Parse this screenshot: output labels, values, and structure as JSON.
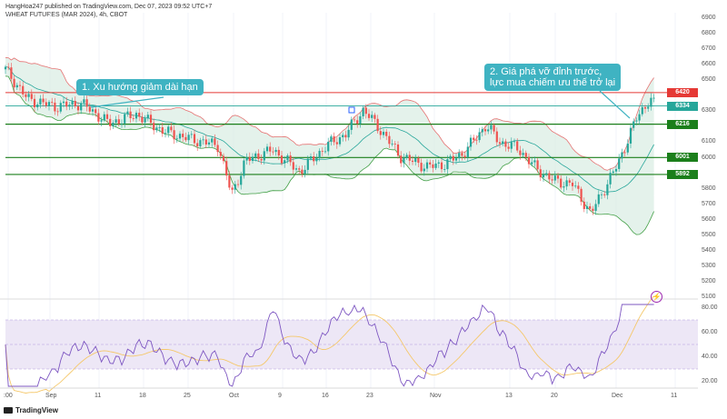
{
  "header": {
    "publisher": "HangHoa247 published on TradingView.com, Dec 07, 2023 09:52 UTC+7",
    "symbol": "WHEAT FUTURES (MAR 2024), 4h, CBOT"
  },
  "annotations": {
    "callout1": "1. Xu hướng giảm dài hạn",
    "callout2_line1": "2. Giá phá vỡ đỉnh trước,",
    "callout2_line2": "lực mua chiếm ưu thế trở lại"
  },
  "price_levels": [
    {
      "label": "6420",
      "value": 6420,
      "color": "#e53935",
      "kind": "tag"
    },
    {
      "label": "6334",
      "value": 6334,
      "color": "#26a69a",
      "kind": "tag"
    },
    {
      "label": "6216",
      "value": 6216,
      "color": "#1b7f1b",
      "kind": "line"
    },
    {
      "label": "6001",
      "value": 6001,
      "color": "#1b7f1b",
      "kind": "line"
    },
    {
      "label": "5892",
      "value": 5892,
      "color": "#1b7f1b",
      "kind": "line"
    }
  ],
  "price_axis": [
    "6900",
    "6800",
    "6700",
    "6600",
    "6500",
    "6300",
    "6100",
    "6000",
    "5800",
    "5700",
    "5600",
    "5500",
    "5400",
    "5300",
    "5200",
    "5100"
  ],
  "rsi_axis": [
    "80.00",
    "60.00",
    "40.00",
    "20.00"
  ],
  "time_axis": [
    ":00",
    "Sep",
    "11",
    "18",
    "25",
    "Oct",
    "9",
    "16",
    "23",
    "Nov",
    "13",
    "20",
    "Dec",
    "11"
  ],
  "footer": {
    "brand": "TradingView"
  },
  "colors": {
    "up": "#26a69a",
    "down": "#ef5350",
    "band_fill": "#d9ece2",
    "rsi_fill": "#ede7f6",
    "rsi_line": "#7e57c2",
    "rsi_ma": "#f5c86b",
    "callout": "#3fb3c2"
  },
  "icons": {
    "lightning": "lightning-icon"
  }
}
